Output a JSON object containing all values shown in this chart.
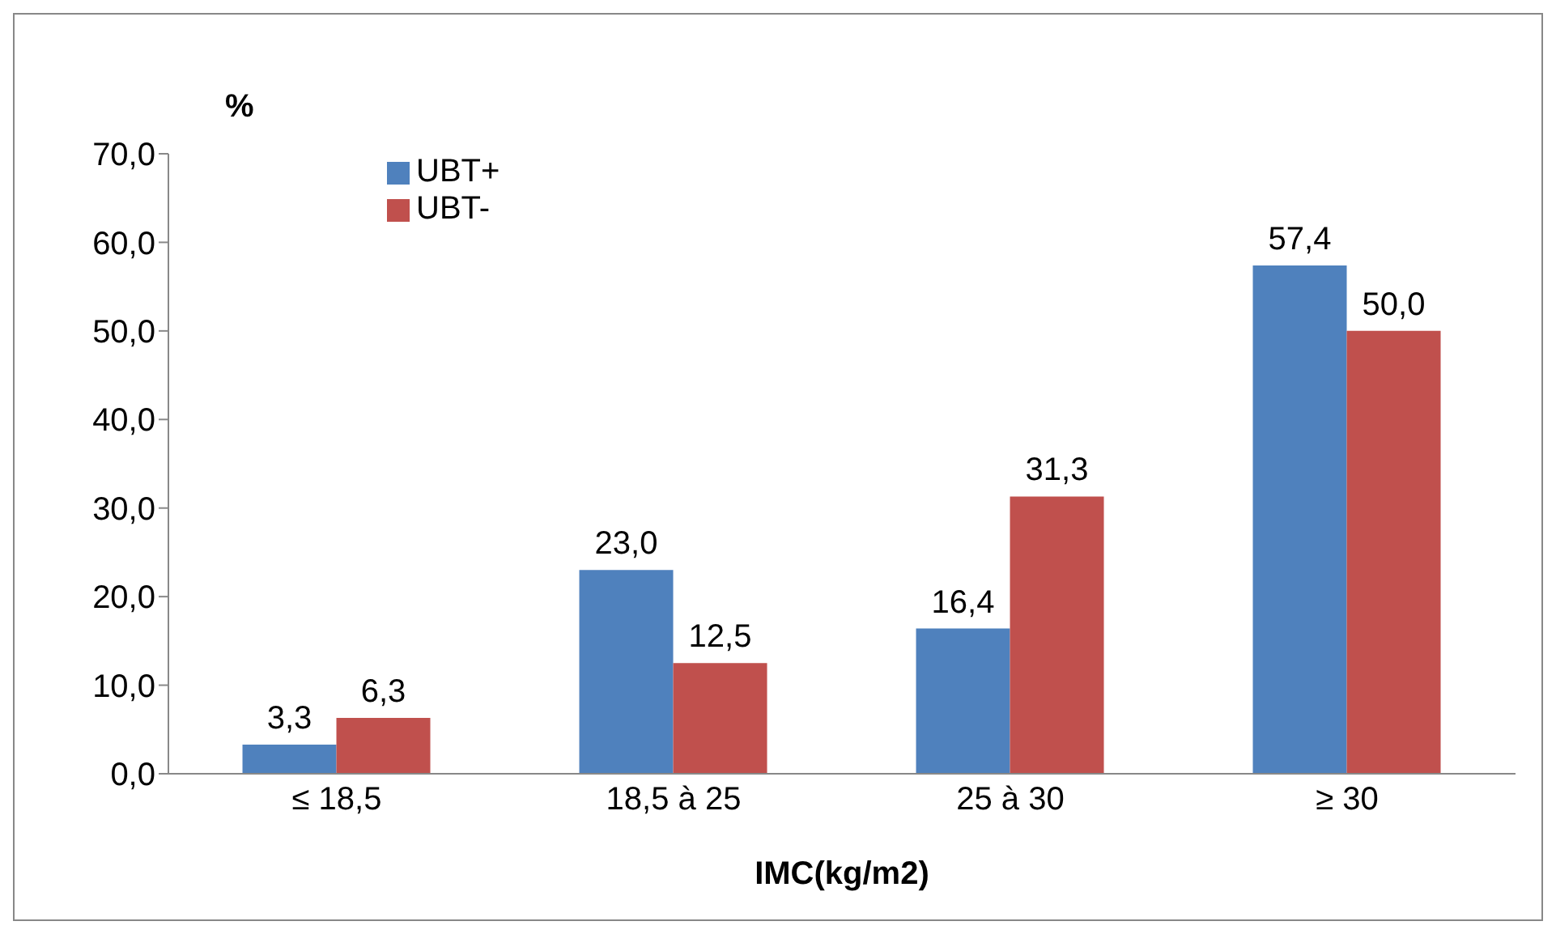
{
  "chart_data": {
    "type": "bar",
    "xlabel": "IMC(kg/m2)",
    "ylabel": "%",
    "categories": [
      "≤ 18,5",
      "18,5 à 25",
      "25 à 30",
      "≥ 30"
    ],
    "series": [
      {
        "name": "UBT+",
        "color": "#4f81bd",
        "values": [
          3.3,
          23.0,
          16.4,
          57.4
        ],
        "value_labels": [
          "3,3",
          "23,0",
          "16,4",
          "57,4"
        ]
      },
      {
        "name": "UBT-",
        "color": "#c0504d",
        "values": [
          6.3,
          12.5,
          31.3,
          50.0
        ],
        "value_labels": [
          "6,3",
          "12,5",
          "31,3",
          "50,0"
        ]
      }
    ],
    "ylim": [
      0,
      70
    ],
    "yticks": [
      {
        "value": 0,
        "label": "0,0"
      },
      {
        "value": 10,
        "label": "10,0"
      },
      {
        "value": 20,
        "label": "20,0"
      },
      {
        "value": 30,
        "label": "30,0"
      },
      {
        "value": 40,
        "label": "40,0"
      },
      {
        "value": 50,
        "label": "50,0"
      },
      {
        "value": 60,
        "label": "60,0"
      },
      {
        "value": 70,
        "label": "70,0"
      }
    ],
    "grid": false,
    "legend": "top left"
  }
}
